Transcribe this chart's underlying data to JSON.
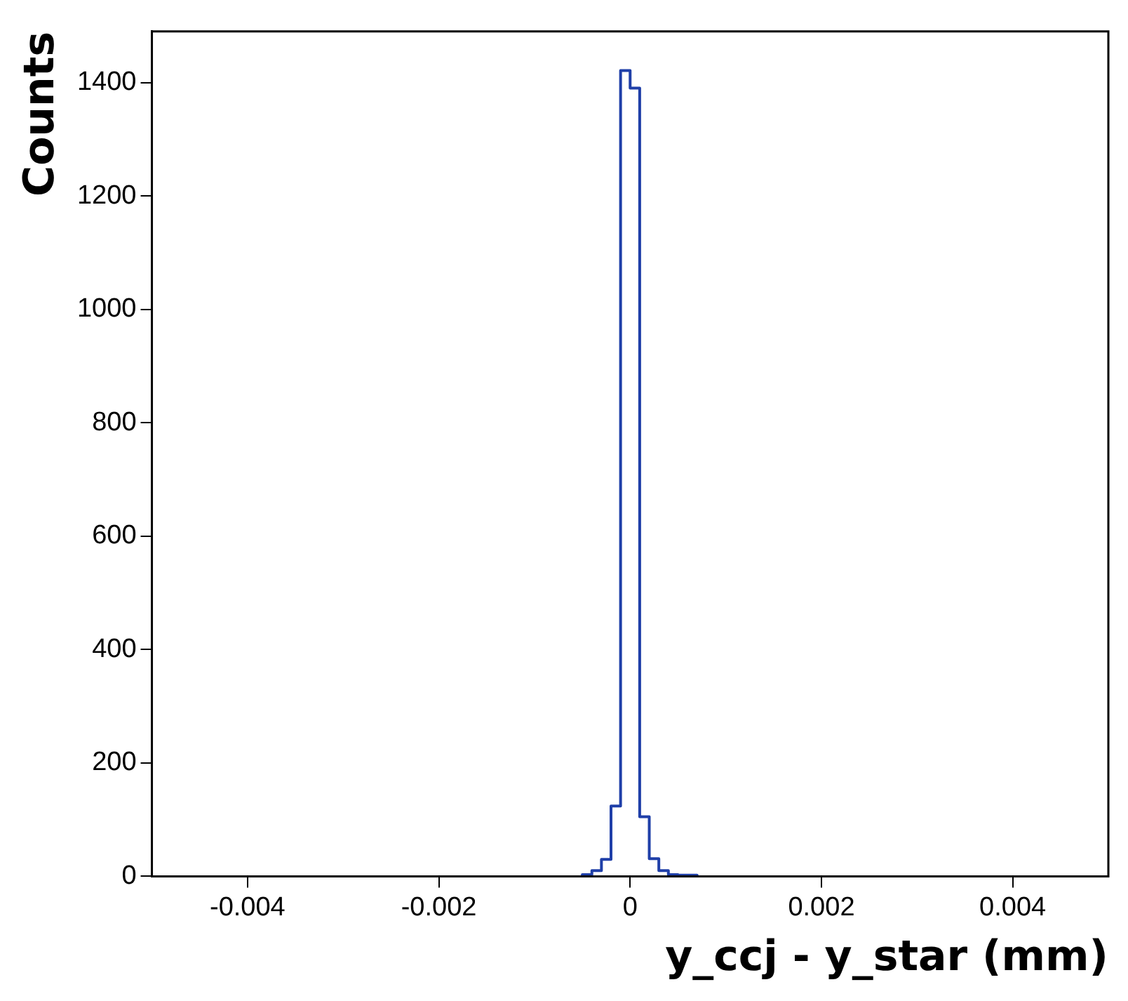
{
  "chart_data": {
    "type": "histogram",
    "xlabel": "y_ccj - y_star (mm)",
    "ylabel": "Counts",
    "bins": [
      -0.0005,
      -0.0004,
      -0.0003,
      -0.0002,
      -0.0001,
      0,
      0.0001,
      0.0002,
      0.0003,
      0.0004,
      0.0005,
      0.0006,
      0.0007
    ],
    "values": [
      3,
      10,
      30,
      124,
      1421,
      1390,
      105,
      31,
      10,
      3,
      2,
      2
    ],
    "color": "#1f3fa8",
    "xlim": [
      -0.005,
      0.005
    ],
    "xticks": [
      -0.004,
      -0.002,
      0,
      0.002,
      0.004
    ],
    "ylim": [
      0,
      1490
    ],
    "yticks": [
      0,
      200,
      400,
      600,
      800,
      1000,
      1200,
      1400
    ],
    "grid": false,
    "legend": false
  }
}
